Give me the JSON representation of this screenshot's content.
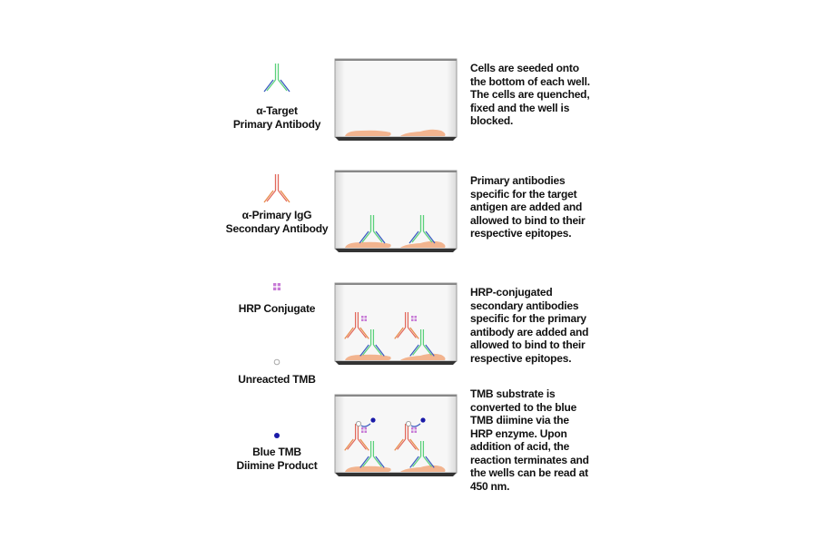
{
  "legend": [
    {
      "icon": "primary-antibody-icon",
      "label_lines": [
        "α-Target",
        "Primary Antibody"
      ]
    },
    {
      "icon": "secondary-antibody-icon",
      "label_lines": [
        "α-Primary IgG",
        "Secondary Antibody"
      ]
    },
    {
      "icon": "hrp-conjugate-icon",
      "label_lines": [
        "HRP Conjugate"
      ]
    },
    {
      "icon": "unreacted-tmb-icon",
      "label_lines": [
        "Unreacted TMB"
      ]
    },
    {
      "icon": "blue-tmb-icon",
      "label_lines": [
        "Blue TMB",
        "Diimine Product"
      ]
    }
  ],
  "steps": [
    {
      "description_lines": [
        "Cells are seeded onto",
        "the bottom of each well.",
        "The cells are quenched,",
        "fixed and the well is",
        "blocked."
      ]
    },
    {
      "description_lines": [
        "Primary antibodies",
        "specific for the target",
        "antigen are added and",
        "allowed to bind to their",
        "respective epitopes."
      ]
    },
    {
      "description_lines": [
        "HRP-conjugated",
        "secondary antibodies",
        "specific for the primary",
        "antibody are added and",
        "allowed to bind to their",
        "respective epitopes."
      ]
    },
    {
      "description_lines": [
        "TMB substrate is",
        "converted to the blue",
        "TMB diimine via the",
        "HRP enzyme. Upon",
        "addition of acid, the",
        "reaction terminates and",
        "the wells can be read at",
        "450 nm."
      ]
    }
  ],
  "colors": {
    "primary_stem": "#5ad17a",
    "primary_arm": "#3a5bbf",
    "secondary_stem": "#e2675a",
    "secondary_arm": "#e88a4a",
    "hrp": "#c77ad6",
    "tmb_blue": "#1a1aa8",
    "cell": "#f2b48f",
    "well_base": "#333333"
  }
}
